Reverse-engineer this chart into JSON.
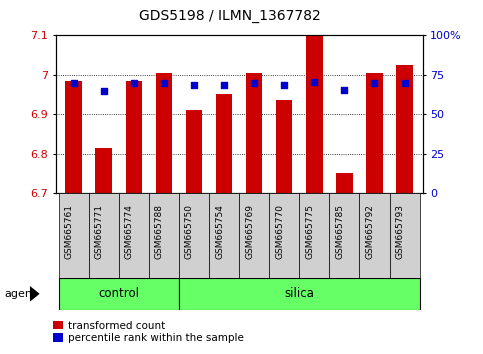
{
  "title": "GDS5198 / ILMN_1367782",
  "samples": [
    "GSM665761",
    "GSM665771",
    "GSM665774",
    "GSM665788",
    "GSM665750",
    "GSM665754",
    "GSM665769",
    "GSM665770",
    "GSM665775",
    "GSM665785",
    "GSM665792",
    "GSM665793"
  ],
  "bar_values": [
    6.985,
    6.815,
    6.983,
    7.005,
    6.91,
    6.95,
    7.005,
    6.935,
    7.1,
    6.75,
    7.005,
    7.025
  ],
  "percentile_values": [
    6.98,
    6.96,
    6.978,
    6.98,
    6.975,
    6.975,
    6.98,
    6.975,
    6.982,
    6.962,
    6.98,
    6.978
  ],
  "ymin": 6.7,
  "ymax": 7.1,
  "yticks_left": [
    6.7,
    6.8,
    6.9,
    7.0,
    7.1
  ],
  "ytick_labels_left": [
    "6.7",
    "6.8",
    "6.9",
    "7",
    "7.1"
  ],
  "yticks_right_vals": [
    0,
    25,
    50,
    75,
    100
  ],
  "ytick_labels_right": [
    "0",
    "25",
    "50",
    "75",
    "100%"
  ],
  "bar_color": "#cc0000",
  "percentile_color": "#0000cc",
  "green_color": "#66ff66",
  "gray_color": "#d0d0d0",
  "control_count": 4,
  "silica_count": 8,
  "legend_labels": [
    "transformed count",
    "percentile rank within the sample"
  ],
  "agent_label": "agent",
  "control_label": "control",
  "silica_label": "silica"
}
